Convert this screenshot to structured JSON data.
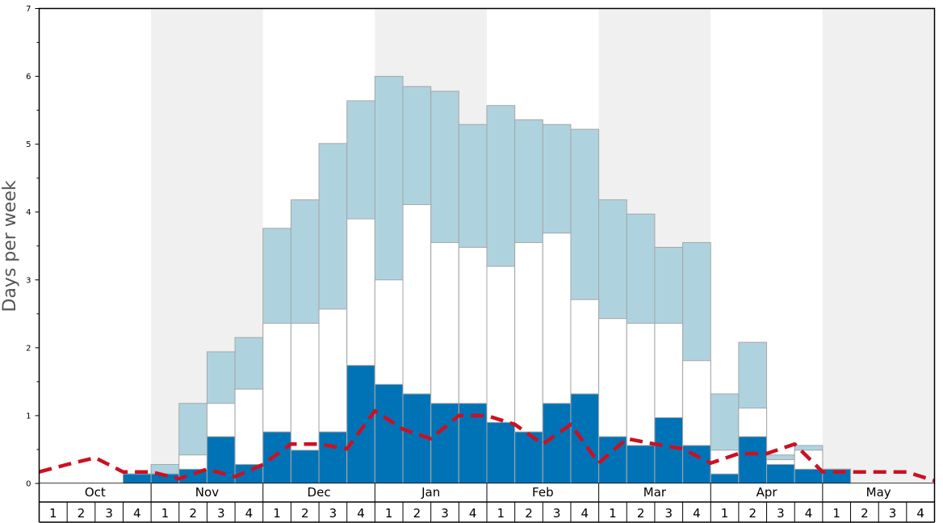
{
  "chart_data": {
    "type": "bar",
    "ylabel": "Days per week",
    "ylim": [
      0,
      7
    ],
    "y_ticks": [
      "0",
      "1",
      "2",
      "3",
      "4",
      "5",
      "6",
      "7"
    ],
    "months": [
      "Oct",
      "Nov",
      "Dec",
      "Jan",
      "Feb",
      "Mar",
      "Apr",
      "May"
    ],
    "week_labels": [
      "1",
      "2",
      "3",
      "4"
    ],
    "colors": {
      "light_band": "#aed3df",
      "middle_band": "#ffffff",
      "bottom_band": "#0073b6",
      "line": "#cc1022",
      "alt_column": "#f0f0f0"
    },
    "series": [
      {
        "values": [
          0,
          0,
          0,
          0.14,
          0.14,
          0.21,
          0.69,
          0.28,
          0.76,
          0.49,
          0.76,
          1.74,
          1.46,
          1.32,
          1.18,
          1.18,
          0.9,
          0.76,
          1.18,
          1.32,
          0.69,
          0.56,
          0.97,
          0.56,
          0.14,
          0.69,
          0.28,
          0.21,
          0.21,
          0,
          0,
          0
        ]
      },
      {
        "values": [
          0,
          0,
          0,
          0.14,
          0.14,
          0.42,
          1.18,
          1.39,
          2.36,
          2.36,
          2.57,
          3.9,
          3.0,
          4.11,
          3.55,
          3.48,
          3.2,
          3.55,
          3.69,
          2.71,
          2.43,
          2.36,
          2.36,
          1.81,
          0.49,
          1.11,
          0.35,
          0.49,
          0.21,
          0,
          0,
          0
        ]
      },
      {
        "values": [
          0,
          0,
          0,
          0.14,
          0.28,
          1.18,
          1.94,
          2.15,
          3.76,
          4.18,
          5.01,
          5.64,
          6.0,
          5.85,
          5.78,
          5.29,
          5.57,
          5.36,
          5.29,
          5.22,
          4.18,
          3.97,
          3.48,
          3.55,
          1.32,
          2.08,
          0.42,
          0.56,
          0.21,
          0,
          0,
          0
        ]
      },
      {
        "values": [
          0.17,
          0.28,
          0.38,
          0.17,
          0.17,
          0.07,
          0.21,
          0.1,
          0.28,
          0.58,
          0.58,
          0.51,
          1.07,
          0.8,
          0.66,
          1.0,
          1.0,
          0.87,
          0.58,
          0.87,
          0.3,
          0.66,
          0.58,
          0.51,
          0.3,
          0.44,
          0.44,
          0.58,
          0.17,
          0.17,
          0.17,
          0.17,
          0.04
        ]
      }
    ]
  }
}
